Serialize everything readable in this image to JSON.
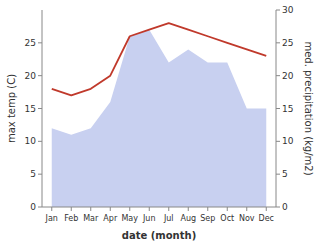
{
  "chart_data": {
    "type": "area",
    "categories": [
      "Jan",
      "Feb",
      "Mar",
      "Apr",
      "May",
      "Jun",
      "Jul",
      "Aug",
      "Sep",
      "Oct",
      "Nov",
      "Dec"
    ],
    "series": [
      {
        "type": "area",
        "color": "#c8d0f0",
        "values": [
          12,
          11,
          12,
          16,
          26,
          27,
          22,
          24,
          22,
          22,
          15,
          15
        ]
      },
      {
        "type": "line",
        "color": "#c0392b",
        "axis": "y2",
        "values": [
          18,
          17,
          18,
          20,
          26,
          27,
          28,
          27,
          26,
          25,
          24,
          23
        ]
      }
    ],
    "xlabel": "date (month)",
    "ylabel": "max temp (C)",
    "y2label": "med. precipitation (kg/m2)",
    "ylim": [
      0,
      30
    ],
    "yticks": [
      0,
      5,
      10,
      15,
      20,
      25
    ],
    "y2lim": [
      0,
      30
    ],
    "y2ticks": [
      0,
      5,
      10,
      15,
      20,
      25,
      30
    ],
    "grid": false
  }
}
